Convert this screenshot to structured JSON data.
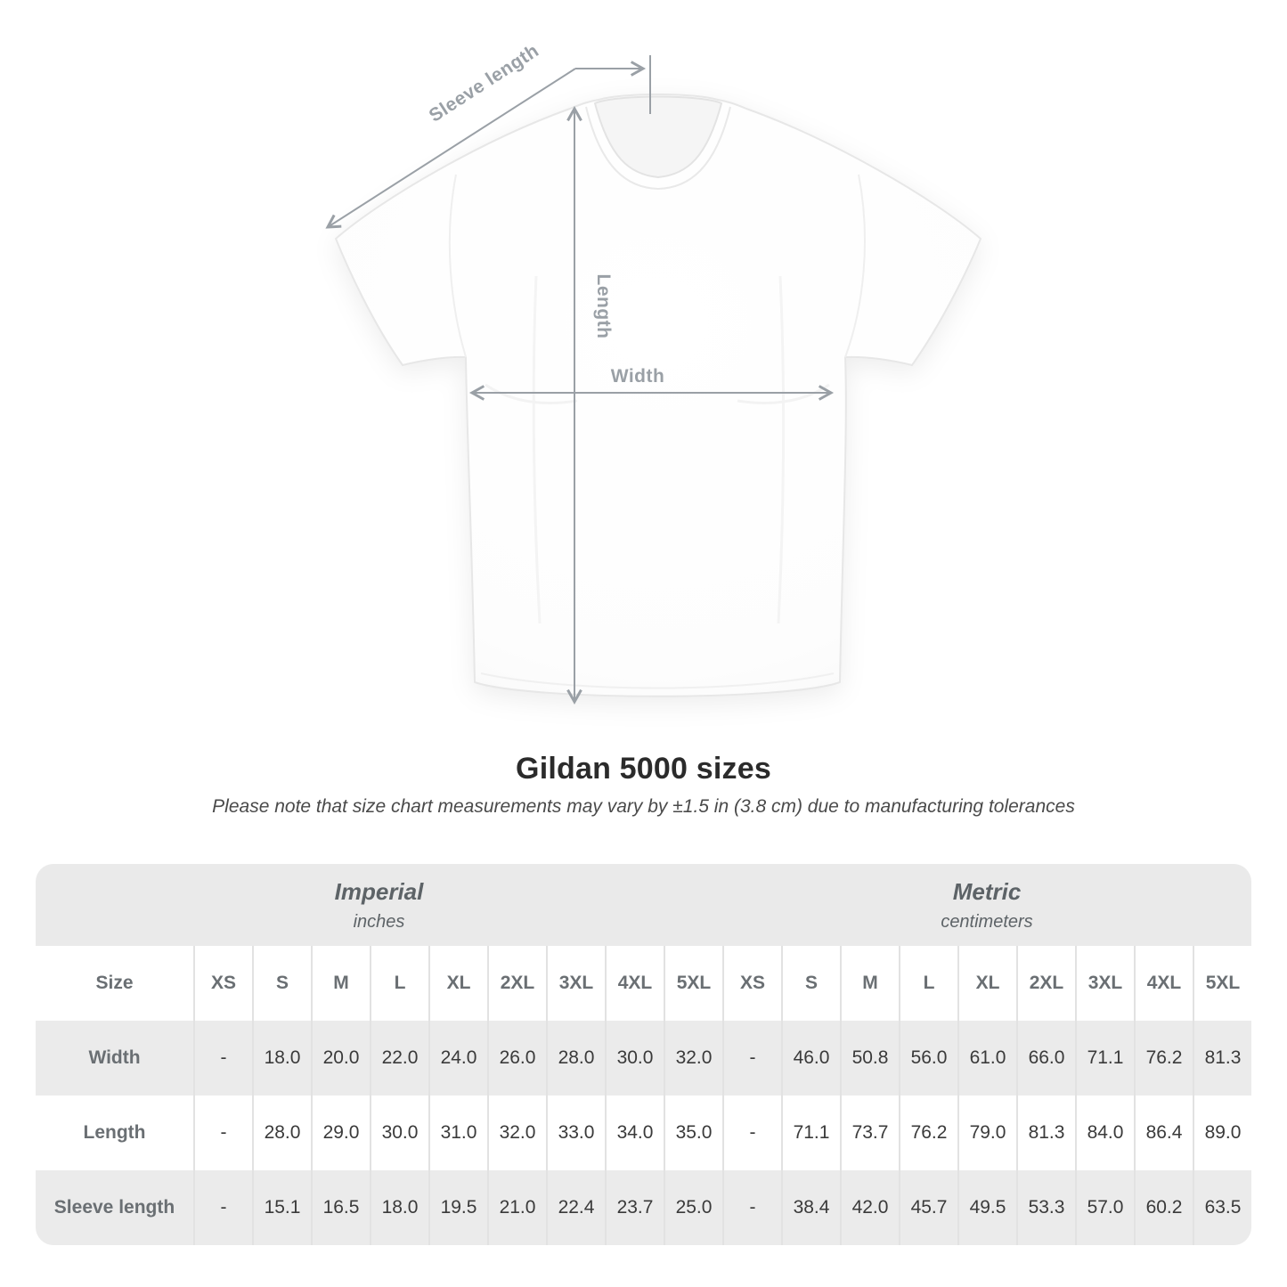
{
  "header": {
    "title": "Gildan 5000 sizes",
    "subtitle": "Please note that size chart measurements may vary by ±1.5 in (3.8 cm) due to manufacturing tolerances"
  },
  "diagram": {
    "sleeve_label": "Sleeve length",
    "length_label": "Length",
    "width_label": "Width",
    "annotation_color": "#9aa0a6"
  },
  "table": {
    "imperial_group": {
      "label": "Imperial",
      "unit": "inches"
    },
    "metric_group": {
      "label": "Metric",
      "unit": "centimeters"
    },
    "size_column_header": "Size",
    "sizes": [
      "XS",
      "S",
      "M",
      "L",
      "XL",
      "2XL",
      "3XL",
      "4XL",
      "5XL"
    ],
    "rows": [
      {
        "label": "Width",
        "imperial": [
          "-",
          "18.0",
          "20.0",
          "22.0",
          "24.0",
          "26.0",
          "28.0",
          "30.0",
          "32.0"
        ],
        "metric": [
          "-",
          "46.0",
          "50.8",
          "56.0",
          "61.0",
          "66.0",
          "71.1",
          "76.2",
          "81.3"
        ]
      },
      {
        "label": "Length",
        "imperial": [
          "-",
          "28.0",
          "29.0",
          "30.0",
          "31.0",
          "32.0",
          "33.0",
          "34.0",
          "35.0"
        ],
        "metric": [
          "-",
          "71.1",
          "73.7",
          "76.2",
          "79.0",
          "81.3",
          "84.0",
          "86.4",
          "89.0"
        ]
      },
      {
        "label": "Sleeve length",
        "imperial": [
          "-",
          "15.1",
          "16.5",
          "18.0",
          "19.5",
          "21.0",
          "22.4",
          "23.7",
          "25.0"
        ],
        "metric": [
          "-",
          "38.4",
          "42.0",
          "45.7",
          "49.5",
          "53.3",
          "57.0",
          "60.2",
          "63.5"
        ]
      }
    ],
    "colors": {
      "band_background": "#eaeaea",
      "alt_row_background": "#ebebeb",
      "separator": "#e2e2e2",
      "header_text": "#6a6f73",
      "value_text": "#3a3a3a"
    }
  },
  "chart_data": {
    "type": "table",
    "title": "Gildan 5000 sizes",
    "note": "Size chart measurements may vary by ±1.5 in (3.8 cm) due to manufacturing tolerances",
    "column_groups": [
      {
        "label": "Imperial",
        "unit": "inches"
      },
      {
        "label": "Metric",
        "unit": "centimeters"
      }
    ],
    "sizes": [
      "XS",
      "S",
      "M",
      "L",
      "XL",
      "2XL",
      "3XL",
      "4XL",
      "5XL"
    ],
    "rows": [
      {
        "measure": "Width",
        "imperial_in": [
          null,
          18.0,
          20.0,
          22.0,
          24.0,
          26.0,
          28.0,
          30.0,
          32.0
        ],
        "metric_cm": [
          null,
          46.0,
          50.8,
          56.0,
          61.0,
          66.0,
          71.1,
          76.2,
          81.3
        ]
      },
      {
        "measure": "Length",
        "imperial_in": [
          null,
          28.0,
          29.0,
          30.0,
          31.0,
          32.0,
          33.0,
          34.0,
          35.0
        ],
        "metric_cm": [
          null,
          71.1,
          73.7,
          76.2,
          79.0,
          81.3,
          84.0,
          86.4,
          89.0
        ]
      },
      {
        "measure": "Sleeve length",
        "imperial_in": [
          null,
          15.1,
          16.5,
          18.0,
          19.5,
          21.0,
          22.4,
          23.7,
          25.0
        ],
        "metric_cm": [
          null,
          38.4,
          42.0,
          45.7,
          49.5,
          53.3,
          57.0,
          60.2,
          63.5
        ]
      }
    ]
  }
}
